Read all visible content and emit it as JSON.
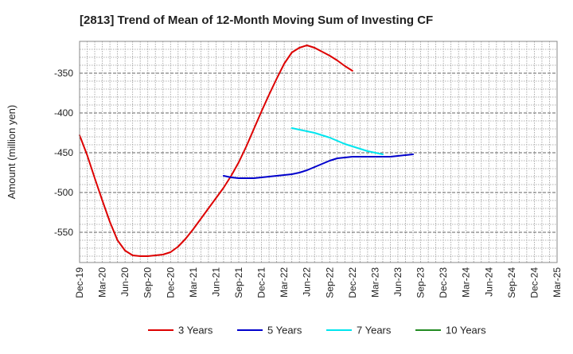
{
  "chart_data": {
    "type": "line",
    "title": "[2813]  Trend of Mean of 12-Month Moving Sum of Investing CF",
    "xlabel": "",
    "ylabel": "Amount (million yen)",
    "x_categories": [
      "Dec-19",
      "Mar-20",
      "Jun-20",
      "Sep-20",
      "Dec-20",
      "Mar-21",
      "Jun-21",
      "Sep-21",
      "Dec-21",
      "Mar-22",
      "Jun-22",
      "Sep-22",
      "Dec-22",
      "Mar-23",
      "Jun-23",
      "Sep-23",
      "Dec-23",
      "Mar-24",
      "Jun-24",
      "Sep-24",
      "Dec-24",
      "Mar-25"
    ],
    "y_ticks": [
      -350,
      -400,
      -450,
      -500,
      -550
    ],
    "ylim": [
      -588,
      -310
    ],
    "grid": true,
    "legend_position": "bottom",
    "series": [
      {
        "name": "3 Years",
        "color": "#dd0000",
        "points": [
          [
            0,
            -428
          ],
          [
            1,
            -453
          ],
          [
            2,
            -482
          ],
          [
            3,
            -510
          ],
          [
            4,
            -537
          ],
          [
            5,
            -560
          ],
          [
            6,
            -573
          ],
          [
            7,
            -579
          ],
          [
            8,
            -580
          ],
          [
            9,
            -580
          ],
          [
            10,
            -579
          ],
          [
            11,
            -578
          ],
          [
            12,
            -575
          ],
          [
            13,
            -568
          ],
          [
            14,
            -558
          ],
          [
            15,
            -546
          ],
          [
            16,
            -533
          ],
          [
            17,
            -520
          ],
          [
            18,
            -507
          ],
          [
            19,
            -494
          ],
          [
            20,
            -479
          ],
          [
            21,
            -462
          ],
          [
            22,
            -442
          ],
          [
            23,
            -420
          ],
          [
            24,
            -398
          ],
          [
            25,
            -377
          ],
          [
            26,
            -357
          ],
          [
            27,
            -338
          ],
          [
            28,
            -324
          ],
          [
            29,
            -318
          ],
          [
            30,
            -315
          ],
          [
            31,
            -318
          ],
          [
            32,
            -323
          ],
          [
            33,
            -328
          ],
          [
            34,
            -334
          ],
          [
            35,
            -341
          ],
          [
            36,
            -347
          ]
        ]
      },
      {
        "name": "5 Years",
        "color": "#0000cc",
        "points": [
          [
            19,
            -479
          ],
          [
            20,
            -481
          ],
          [
            21,
            -482
          ],
          [
            22,
            -482
          ],
          [
            23,
            -482
          ],
          [
            24,
            -481
          ],
          [
            25,
            -480
          ],
          [
            26,
            -479
          ],
          [
            27,
            -478
          ],
          [
            28,
            -477
          ],
          [
            29,
            -475
          ],
          [
            30,
            -472
          ],
          [
            31,
            -468
          ],
          [
            32,
            -464
          ],
          [
            33,
            -460
          ],
          [
            34,
            -457
          ],
          [
            35,
            -456
          ],
          [
            36,
            -455
          ],
          [
            37,
            -455
          ],
          [
            38,
            -455
          ],
          [
            39,
            -455
          ],
          [
            40,
            -455
          ],
          [
            41,
            -455
          ],
          [
            42,
            -454
          ],
          [
            43,
            -453
          ],
          [
            44,
            -452
          ]
        ]
      },
      {
        "name": "7 Years",
        "color": "#00e5ee",
        "points": [
          [
            28,
            -419
          ],
          [
            29,
            -421
          ],
          [
            30,
            -423
          ],
          [
            31,
            -425
          ],
          [
            32,
            -428
          ],
          [
            33,
            -431
          ],
          [
            34,
            -435
          ],
          [
            35,
            -439
          ],
          [
            36,
            -442
          ],
          [
            37,
            -445
          ],
          [
            38,
            -448
          ],
          [
            39,
            -450
          ],
          [
            40,
            -452
          ]
        ]
      },
      {
        "name": "10 Years",
        "color": "#228b22",
        "points": []
      }
    ]
  }
}
